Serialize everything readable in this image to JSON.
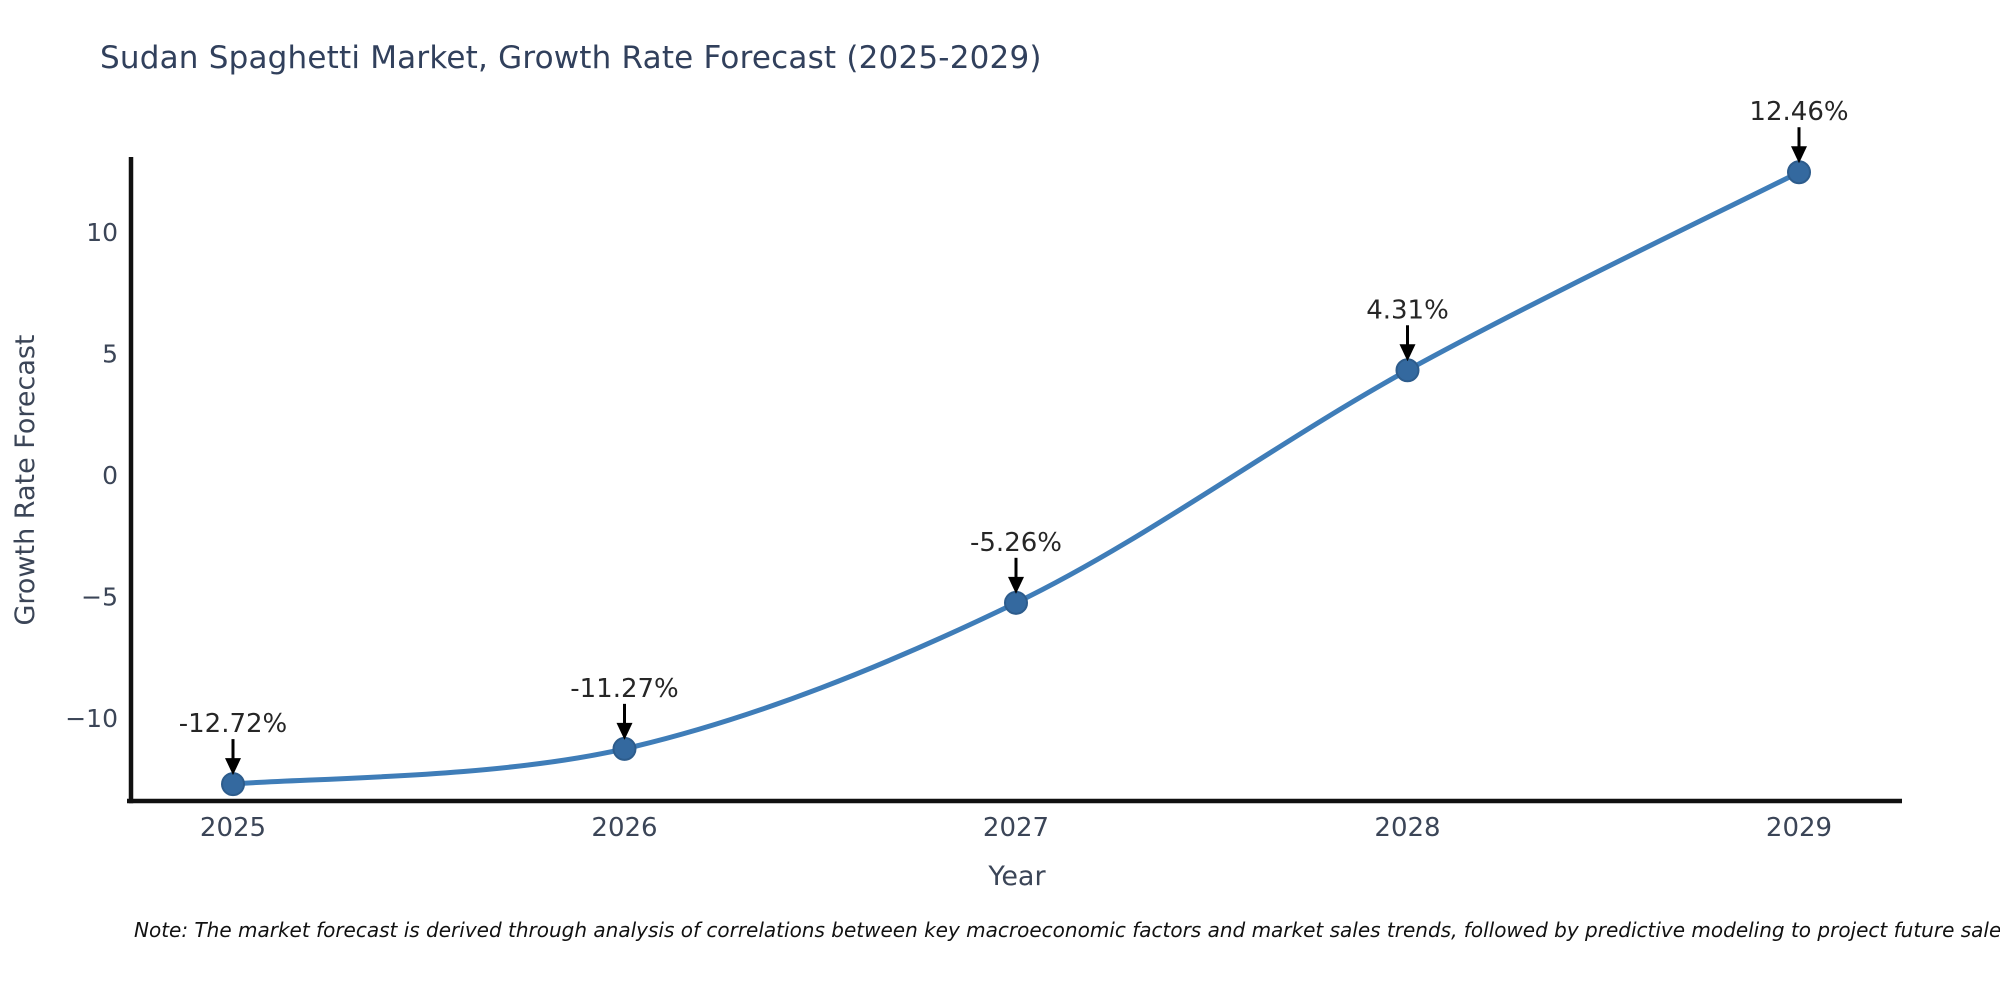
{
  "title": "Sudan Spaghetti Market, Growth Rate Forecast (2025-2029)",
  "note": "Note: The market forecast is derived through analysis of correlations between key macroeconomic factors and market sales trends, followed by predictive modeling to project future sales",
  "chart_data": {
    "type": "line",
    "title": "Sudan Spaghetti Market, Growth Rate Forecast (2025-2029)",
    "xlabel": "Year",
    "ylabel": "Growth Rate Forecast",
    "x": [
      2025,
      2026,
      2027,
      2028,
      2029
    ],
    "series": [
      {
        "name": "Growth Rate Forecast",
        "values": [
          -12.72,
          -11.27,
          -5.26,
          4.31,
          12.46
        ]
      }
    ],
    "point_labels": [
      "-12.72%",
      "-11.27%",
      "-5.26%",
      "4.31%",
      "12.46%"
    ],
    "xtick_labels": [
      "2025",
      "2026",
      "2027",
      "2028",
      "2029"
    ],
    "yticks": [
      -10,
      -5,
      0,
      5,
      10
    ],
    "ytick_labels": [
      "−10",
      "−5",
      "0",
      "5",
      "10"
    ],
    "ylim": [
      -13.5,
      13.1
    ],
    "grid": false,
    "legend": "none",
    "smooth": true,
    "colors": {
      "line": "#3f7db8",
      "marker_fill": "#34699f",
      "marker_stroke": "#2d5c8c",
      "axis_spine": "#111111",
      "tick_label": "#3b4557",
      "axis_title": "#3b4557",
      "annotation_text": "#262626",
      "annotation_arrow": "#000000",
      "title_color": "#31405c"
    }
  }
}
